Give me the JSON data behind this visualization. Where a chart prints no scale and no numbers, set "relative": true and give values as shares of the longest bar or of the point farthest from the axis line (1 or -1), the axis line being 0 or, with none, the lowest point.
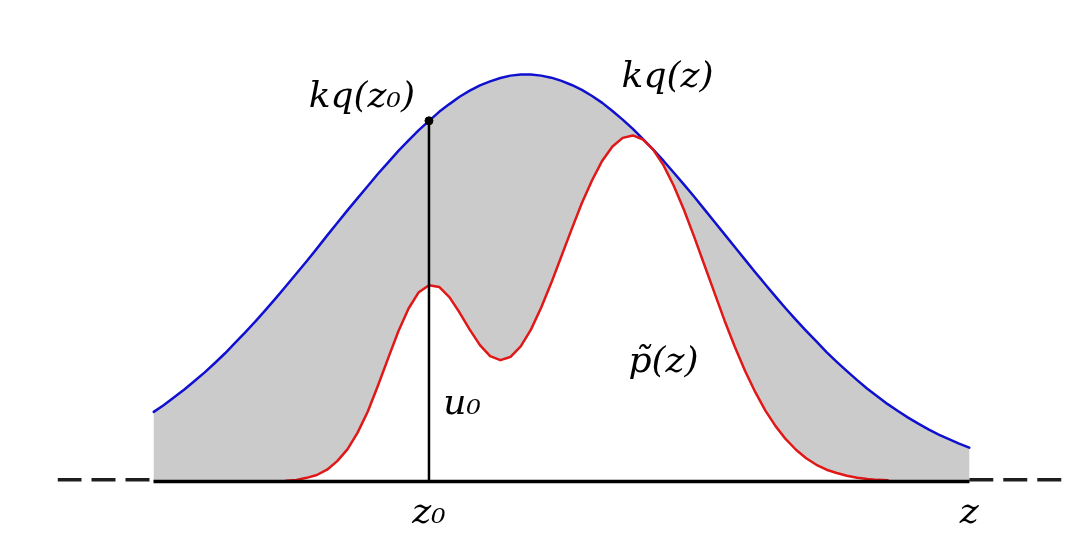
{
  "chart_data": {
    "type": "line",
    "relative": true,
    "categories": [
      null,
      null,
      null,
      null,
      null,
      null,
      null,
      null,
      null,
      null,
      null,
      null,
      null,
      null,
      null,
      null,
      null,
      null,
      null,
      null,
      null,
      null,
      null,
      null,
      null,
      null,
      null,
      "z₀",
      null,
      null,
      null,
      null,
      null,
      null,
      null,
      null,
      null,
      null,
      null,
      null,
      null,
      null,
      null,
      null,
      null,
      null,
      null,
      null,
      null,
      null,
      null,
      null,
      null,
      null,
      null,
      null,
      null,
      null,
      null,
      null,
      null,
      null,
      null,
      null,
      null,
      null,
      null,
      null,
      null,
      null,
      null,
      null,
      null,
      null,
      null,
      null,
      null,
      null,
      null,
      null,
      "z"
    ],
    "series": [
      {
        "name": "kq(z)",
        "color": "#1010d0",
        "values": [
          0.171,
          0.188,
          0.207,
          0.226,
          0.247,
          0.268,
          0.291,
          0.315,
          0.341,
          0.367,
          0.394,
          0.422,
          0.451,
          0.481,
          0.511,
          0.541,
          0.572,
          0.604,
          0.635,
          0.666,
          0.696,
          0.726,
          0.756,
          0.784,
          0.812,
          0.838,
          0.863,
          0.886,
          0.908,
          0.927,
          0.945,
          0.96,
          0.973,
          0.983,
          0.991,
          0.997,
          1,
          1,
          0.997,
          0.992,
          0.984,
          0.974,
          0.962,
          0.947,
          0.93,
          0.91,
          0.889,
          0.866,
          0.841,
          0.815,
          0.788,
          0.759,
          0.73,
          0.7,
          0.669,
          0.638,
          0.607,
          0.576,
          0.545,
          0.514,
          0.484,
          0.454,
          0.425,
          0.397,
          0.37,
          0.344,
          0.318,
          0.294,
          0.271,
          0.249,
          0.228,
          0.209,
          0.19,
          0.173,
          0.157,
          0.142,
          0.128,
          0.115,
          0.104,
          0.093,
          0.083
        ],
        "lower": [
          0,
          0,
          0,
          0,
          0,
          0,
          0,
          0,
          0,
          0,
          0,
          0,
          0.001,
          0.002,
          0.004,
          0.009,
          0.016,
          0.029,
          0.05,
          0.079,
          0.12,
          0.172,
          0.236,
          0.303,
          0.369,
          0.425,
          0.465,
          0.482,
          0.478,
          0.453,
          0.415,
          0.373,
          0.335,
          0.308,
          0.298,
          0.306,
          0.332,
          0.373,
          0.427,
          0.488,
          0.554,
          0.62,
          0.684,
          0.74,
          0.788,
          0.823,
          0.844,
          0.85,
          0.84,
          0.815,
          0.777,
          0.727,
          0.668,
          0.602,
          0.533,
          0.464,
          0.395,
          0.331,
          0.272,
          0.22,
          0.174,
          0.136,
          0.104,
          0.078,
          0.057,
          0.041,
          0.029,
          0.021,
          0.014,
          0.009,
          0.006,
          0.004,
          0.003,
          0.002,
          0.001,
          0.001,
          0,
          0,
          0,
          0,
          0
        ],
        "upper": [
          0.171,
          0.188,
          0.207,
          0.226,
          0.247,
          0.268,
          0.291,
          0.315,
          0.341,
          0.367,
          0.394,
          0.422,
          0.451,
          0.481,
          0.511,
          0.541,
          0.572,
          0.604,
          0.635,
          0.666,
          0.696,
          0.726,
          0.756,
          0.784,
          0.812,
          0.838,
          0.863,
          0.886,
          0.908,
          0.927,
          0.945,
          0.96,
          0.973,
          0.983,
          0.991,
          0.997,
          1,
          1,
          0.997,
          0.992,
          0.984,
          0.974,
          0.962,
          0.947,
          0.93,
          0.91,
          0.889,
          0.866,
          0.841,
          0.815,
          0.788,
          0.759,
          0.73,
          0.7,
          0.669,
          0.638,
          0.607,
          0.576,
          0.545,
          0.514,
          0.484,
          0.454,
          0.425,
          0.397,
          0.37,
          0.344,
          0.318,
          0.294,
          0.271,
          0.249,
          0.228,
          0.209,
          0.19,
          0.173,
          0.157,
          0.142,
          0.128,
          0.115,
          0.104,
          0.093,
          0.083
        ]
      },
      {
        "name": "p̃(z)",
        "color": "#e01818",
        "values": [
          null,
          null,
          null,
          null,
          null,
          null,
          null,
          null,
          null,
          null,
          null,
          null,
          null,
          0.002,
          0.004,
          0.009,
          0.016,
          0.029,
          0.05,
          0.079,
          0.12,
          0.172,
          0.236,
          0.303,
          0.369,
          0.425,
          0.465,
          0.482,
          0.478,
          0.453,
          0.415,
          0.373,
          0.335,
          0.308,
          0.298,
          0.306,
          0.332,
          0.373,
          0.427,
          0.488,
          0.554,
          0.62,
          0.684,
          0.74,
          0.788,
          0.823,
          0.844,
          0.85,
          0.84,
          0.815,
          0.777,
          0.727,
          0.668,
          0.602,
          0.533,
          0.464,
          0.395,
          0.331,
          0.272,
          0.22,
          0.174,
          0.136,
          0.104,
          0.078,
          0.057,
          0.041,
          0.029,
          0.021,
          0.014,
          0.009,
          0.006,
          0.004,
          0.003,
          null,
          null,
          null,
          null,
          null,
          null,
          null,
          null
        ]
      },
      {
        "name": "kq(z₀)",
        "type": "lollipop",
        "color": "#000000",
        "marker": "circle",
        "x": [
          "z₀"
        ],
        "values": [
          0.886
        ]
      }
    ],
    "annotations": [
      "u₀"
    ]
  }
}
